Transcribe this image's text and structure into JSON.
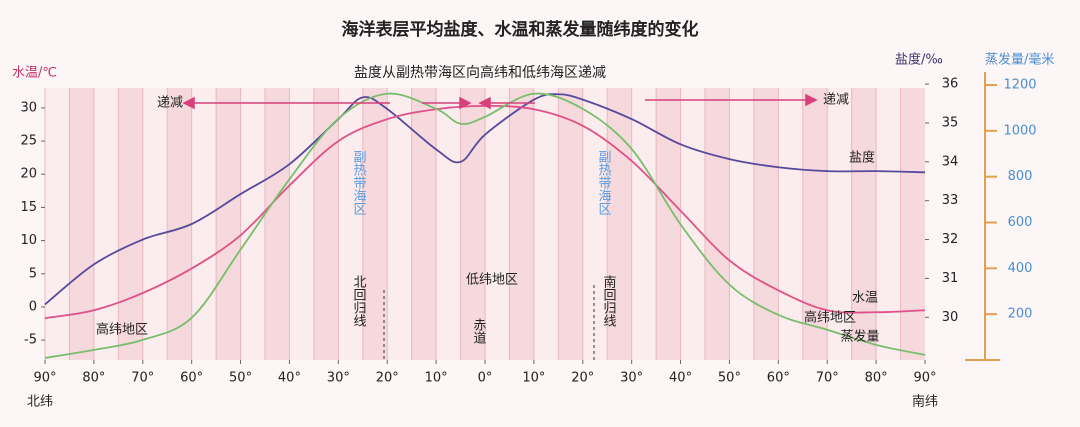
{
  "chart_data": {
    "type": "line",
    "title": "海洋表层平均盐度、水温和蒸发量随纬度的变化",
    "subtitle": "盐度从副热带海区向高纬和低纬海区递减",
    "y_label": "水温/℃",
    "y2_label": "盐度/‰",
    "y3_label": "蒸发量/毫米",
    "x_side_labels": [
      "北纬",
      "南纬"
    ],
    "xlim": [
      90,
      -90
    ],
    "xticks": [
      {
        "value": 90,
        "label": "90°"
      },
      {
        "value": 80,
        "label": "80°"
      },
      {
        "value": 70,
        "label": "70°"
      },
      {
        "value": 60,
        "label": "60°"
      },
      {
        "value": 50,
        "label": "50°"
      },
      {
        "value": 40,
        "label": "40°"
      },
      {
        "value": 30,
        "label": "30°"
      },
      {
        "value": 20,
        "label": "20°"
      },
      {
        "value": 10,
        "label": "10°"
      },
      {
        "value": 0,
        "label": "0°"
      },
      {
        "value": -10,
        "label": "10°"
      },
      {
        "value": -20,
        "label": "20°"
      },
      {
        "value": -30,
        "label": "30°"
      },
      {
        "value": -40,
        "label": "40°"
      },
      {
        "value": -50,
        "label": "50°"
      },
      {
        "value": -60,
        "label": "60°"
      },
      {
        "value": -70,
        "label": "70°"
      },
      {
        "value": -80,
        "label": "80°"
      },
      {
        "value": -90,
        "label": "90°"
      }
    ],
    "ylim": [
      -8,
      33
    ],
    "yticks": [
      -5,
      0,
      5,
      10,
      15,
      20,
      25,
      30
    ],
    "y2lim": [
      28.9,
      35.9
    ],
    "y2ticks": [
      30,
      31,
      32,
      33,
      34,
      35,
      36
    ],
    "y3lim": [
      0,
      1187
    ],
    "y3ticks": [
      200,
      400,
      600,
      800,
      1000,
      1200
    ],
    "series": [
      {
        "name": "盐度",
        "color": "#574a9c",
        "axis": "y2",
        "x": [
          90,
          80,
          70,
          60,
          50,
          40,
          30,
          25,
          20,
          10,
          5,
          0,
          -10,
          -15,
          -20,
          -30,
          -40,
          -50,
          -60,
          -70,
          -80,
          -90
        ],
        "values": [
          30.33,
          31.36,
          32.0,
          32.4,
          33.17,
          33.94,
          35.1,
          35.66,
          35.36,
          34.32,
          34.0,
          34.7,
          35.6,
          35.74,
          35.6,
          35.1,
          34.45,
          34.07,
          33.86,
          33.76,
          33.76,
          33.73
        ]
      },
      {
        "name": "水温",
        "color": "#e0508a",
        "axis": "y",
        "x": [
          90,
          80,
          70,
          60,
          50,
          40,
          30,
          20,
          10,
          0,
          -10,
          -20,
          -30,
          -40,
          -50,
          -60,
          -70,
          -80,
          -90
        ],
        "values": [
          -1.7,
          -0.5,
          2.1,
          5.8,
          10.8,
          18.3,
          25,
          28.3,
          29.8,
          30.3,
          29.8,
          27.3,
          22,
          14.5,
          7,
          2.5,
          -0.5,
          -0.8,
          -0.5
        ]
      },
      {
        "name": "蒸发量",
        "color": "#78be6c",
        "axis": "y3",
        "x": [
          90,
          80,
          70,
          60,
          50,
          40,
          30,
          20,
          10,
          5,
          0,
          -10,
          -20,
          -30,
          -40,
          -50,
          -60,
          -70,
          -80,
          -90
        ],
        "values": [
          9,
          44,
          88,
          184,
          482,
          789,
          1053,
          1162,
          1096,
          1031,
          1061,
          1162,
          1096,
          921,
          592,
          329,
          197,
          132,
          66,
          22
        ]
      }
    ],
    "annotations": [
      "递减",
      "递减",
      "副热带海区",
      "副热带海区",
      "北回归线",
      "南回归线",
      "低纬地区",
      "赤道",
      "高纬地区",
      "高纬地区"
    ]
  }
}
